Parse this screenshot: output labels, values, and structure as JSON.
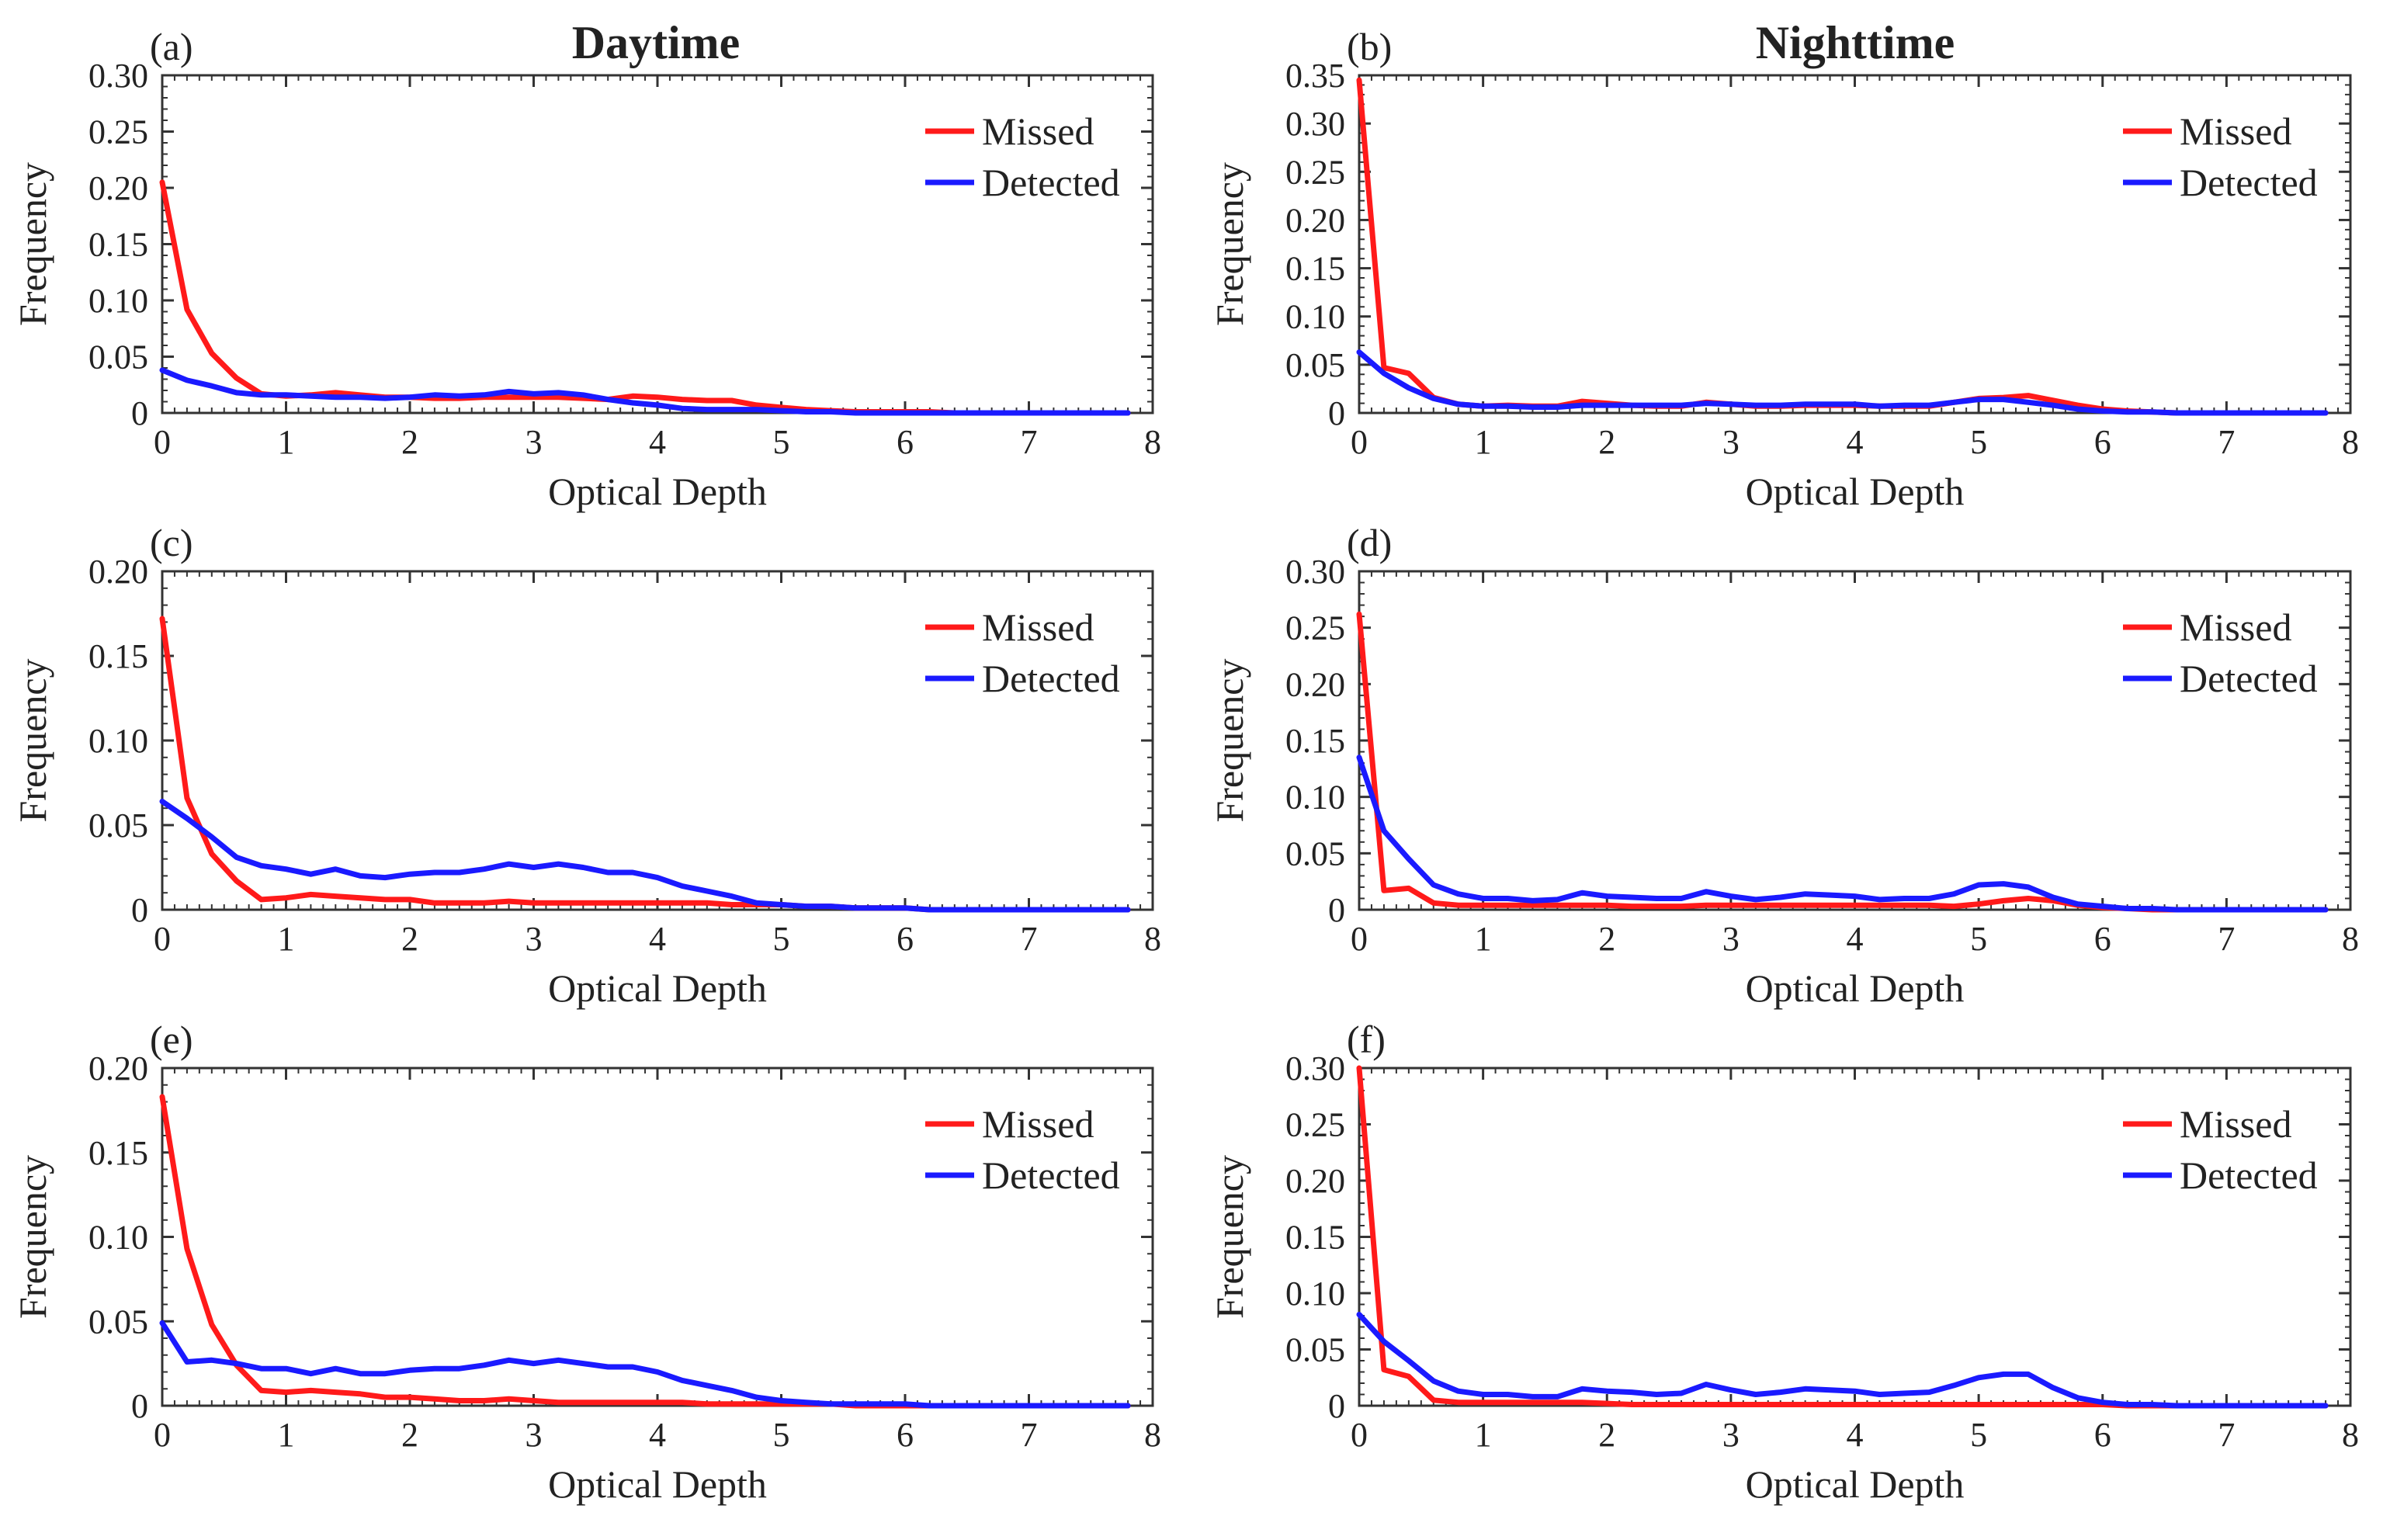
{
  "figure": {
    "column_titles": [
      "Daytime",
      "Nighttime"
    ]
  },
  "colors": {
    "missed": "#ff1a1a",
    "detected": "#1a1aff",
    "axis": "#333333"
  },
  "chart_data": [
    {
      "type": "line",
      "panel_label": "(a)",
      "xlabel": "Optical Depth",
      "ylabel": "Frequency",
      "xlim": [
        0,
        8
      ],
      "ylim": [
        0,
        0.3
      ],
      "x_ticks": [
        0,
        1,
        2,
        3,
        4,
        5,
        6,
        7,
        8
      ],
      "x_tick_labels": [
        "0",
        "1",
        "2",
        "3",
        "4",
        "5",
        "6",
        "7",
        "8"
      ],
      "y_ticks": [
        0,
        0.05,
        0.1,
        0.15,
        0.2,
        0.25,
        0.3
      ],
      "y_tick_labels": [
        "0",
        "0.05",
        "0.10",
        "0.15",
        "0.20",
        "0.25",
        "0.30"
      ],
      "legend": {
        "position": "top-right",
        "entries": [
          "Missed",
          "Detected"
        ]
      },
      "x": [
        0,
        0.2,
        0.4,
        0.6,
        0.8,
        1.0,
        1.2,
        1.4,
        1.6,
        1.8,
        2.0,
        2.2,
        2.4,
        2.6,
        2.8,
        3.0,
        3.2,
        3.4,
        3.6,
        3.8,
        4.0,
        4.2,
        4.4,
        4.6,
        4.8,
        5.0,
        5.2,
        5.4,
        5.6,
        5.8,
        6.0,
        6.2,
        6.4,
        6.6,
        6.8,
        7.0,
        7.2,
        7.4,
        7.6,
        7.8
      ],
      "series": [
        {
          "name": "Missed",
          "values": [
            0.205,
            0.092,
            0.053,
            0.031,
            0.017,
            0.015,
            0.016,
            0.018,
            0.016,
            0.014,
            0.014,
            0.013,
            0.013,
            0.014,
            0.014,
            0.014,
            0.014,
            0.013,
            0.012,
            0.015,
            0.014,
            0.012,
            0.011,
            0.011,
            0.007,
            0.005,
            0.003,
            0.002,
            0.001,
            0.001,
            0.001,
            0.001,
            0.0,
            0.0,
            0.0,
            0.0,
            0.0,
            0.0,
            0.0,
            0.0
          ]
        },
        {
          "name": "Detected",
          "values": [
            0.038,
            0.029,
            0.024,
            0.018,
            0.016,
            0.016,
            0.015,
            0.014,
            0.014,
            0.013,
            0.014,
            0.016,
            0.015,
            0.016,
            0.019,
            0.017,
            0.018,
            0.016,
            0.012,
            0.009,
            0.007,
            0.004,
            0.003,
            0.003,
            0.003,
            0.002,
            0.001,
            0.001,
            0.0,
            0.0,
            0.0,
            0.0,
            0.0,
            0.0,
            0.0,
            0.0,
            0.0,
            0.0,
            0.0,
            0.0
          ]
        }
      ]
    },
    {
      "type": "line",
      "panel_label": "(b)",
      "xlabel": "Optical Depth",
      "ylabel": "Frequency",
      "xlim": [
        0,
        8
      ],
      "ylim": [
        0,
        0.35
      ],
      "x_ticks": [
        0,
        1,
        2,
        3,
        4,
        5,
        6,
        7,
        8
      ],
      "x_tick_labels": [
        "0",
        "1",
        "2",
        "3",
        "4",
        "5",
        "6",
        "7",
        "8"
      ],
      "y_ticks": [
        0,
        0.05,
        0.1,
        0.15,
        0.2,
        0.25,
        0.3,
        0.35
      ],
      "y_tick_labels": [
        "0",
        "0.05",
        "0.10",
        "0.15",
        "0.20",
        "0.25",
        "0.30",
        "0.35"
      ],
      "legend": {
        "position": "top-right",
        "entries": [
          "Missed",
          "Detected"
        ]
      },
      "x": [
        0,
        0.2,
        0.4,
        0.6,
        0.8,
        1.0,
        1.2,
        1.4,
        1.6,
        1.8,
        2.0,
        2.2,
        2.4,
        2.6,
        2.8,
        3.0,
        3.2,
        3.4,
        3.6,
        3.8,
        4.0,
        4.2,
        4.4,
        4.6,
        4.8,
        5.0,
        5.2,
        5.4,
        5.6,
        5.8,
        6.0,
        6.2,
        6.4,
        6.6,
        6.8,
        7.0,
        7.2,
        7.4,
        7.6,
        7.8
      ],
      "series": [
        {
          "name": "Missed",
          "values": [
            0.345,
            0.047,
            0.041,
            0.016,
            0.009,
            0.007,
            0.008,
            0.007,
            0.007,
            0.012,
            0.01,
            0.008,
            0.007,
            0.007,
            0.011,
            0.009,
            0.007,
            0.007,
            0.008,
            0.008,
            0.008,
            0.007,
            0.007,
            0.007,
            0.011,
            0.015,
            0.016,
            0.018,
            0.013,
            0.008,
            0.004,
            0.002,
            0.001,
            0.0,
            0.0,
            0.0,
            0.0,
            0.0,
            0.0,
            0.0
          ]
        },
        {
          "name": "Detected",
          "values": [
            0.063,
            0.041,
            0.026,
            0.015,
            0.009,
            0.007,
            0.007,
            0.006,
            0.006,
            0.008,
            0.008,
            0.008,
            0.008,
            0.008,
            0.01,
            0.009,
            0.008,
            0.008,
            0.009,
            0.009,
            0.009,
            0.007,
            0.008,
            0.008,
            0.011,
            0.014,
            0.014,
            0.011,
            0.008,
            0.004,
            0.002,
            0.001,
            0.001,
            0.0,
            0.0,
            0.0,
            0.0,
            0.0,
            0.0,
            0.0
          ]
        }
      ]
    },
    {
      "type": "line",
      "panel_label": "(c)",
      "xlabel": "Optical Depth",
      "ylabel": "Frequency",
      "xlim": [
        0,
        8
      ],
      "ylim": [
        0,
        0.2
      ],
      "x_ticks": [
        0,
        1,
        2,
        3,
        4,
        5,
        6,
        7,
        8
      ],
      "x_tick_labels": [
        "0",
        "1",
        "2",
        "3",
        "4",
        "5",
        "6",
        "7",
        "8"
      ],
      "y_ticks": [
        0,
        0.05,
        0.1,
        0.15,
        0.2
      ],
      "y_tick_labels": [
        "0",
        "0.05",
        "0.10",
        "0.15",
        "0.20"
      ],
      "legend": {
        "position": "top-right",
        "entries": [
          "Missed",
          "Detected"
        ]
      },
      "x": [
        0,
        0.2,
        0.4,
        0.6,
        0.8,
        1.0,
        1.2,
        1.4,
        1.6,
        1.8,
        2.0,
        2.2,
        2.4,
        2.6,
        2.8,
        3.0,
        3.2,
        3.4,
        3.6,
        3.8,
        4.0,
        4.2,
        4.4,
        4.6,
        4.8,
        5.0,
        5.2,
        5.4,
        5.6,
        5.8,
        6.0,
        6.2,
        6.4,
        6.6,
        6.8,
        7.0,
        7.2,
        7.4,
        7.6,
        7.8
      ],
      "series": [
        {
          "name": "Missed",
          "values": [
            0.172,
            0.066,
            0.033,
            0.017,
            0.006,
            0.007,
            0.009,
            0.008,
            0.007,
            0.006,
            0.006,
            0.004,
            0.004,
            0.004,
            0.005,
            0.004,
            0.004,
            0.004,
            0.004,
            0.004,
            0.004,
            0.004,
            0.004,
            0.003,
            0.003,
            0.003,
            0.002,
            0.002,
            0.001,
            0.001,
            0.001,
            0.0,
            0.0,
            0.0,
            0.0,
            0.0,
            0.0,
            0.0,
            0.0,
            0.0
          ]
        },
        {
          "name": "Detected",
          "values": [
            0.064,
            0.054,
            0.043,
            0.031,
            0.026,
            0.024,
            0.021,
            0.024,
            0.02,
            0.019,
            0.021,
            0.022,
            0.022,
            0.024,
            0.027,
            0.025,
            0.027,
            0.025,
            0.022,
            0.022,
            0.019,
            0.014,
            0.011,
            0.008,
            0.004,
            0.003,
            0.002,
            0.002,
            0.001,
            0.001,
            0.001,
            0.0,
            0.0,
            0.0,
            0.0,
            0.0,
            0.0,
            0.0,
            0.0,
            0.0
          ]
        }
      ]
    },
    {
      "type": "line",
      "panel_label": "(d)",
      "xlabel": "Optical Depth",
      "ylabel": "Frequency",
      "xlim": [
        0,
        8
      ],
      "ylim": [
        0,
        0.3
      ],
      "x_ticks": [
        0,
        1,
        2,
        3,
        4,
        5,
        6,
        7,
        8
      ],
      "x_tick_labels": [
        "0",
        "1",
        "2",
        "3",
        "4",
        "5",
        "6",
        "7",
        "8"
      ],
      "y_ticks": [
        0,
        0.05,
        0.1,
        0.15,
        0.2,
        0.25,
        0.3
      ],
      "y_tick_labels": [
        "0",
        "0.05",
        "0.10",
        "0.15",
        "0.20",
        "0.25",
        "0.30"
      ],
      "legend": {
        "position": "top-right",
        "entries": [
          "Missed",
          "Detected"
        ]
      },
      "x": [
        0,
        0.2,
        0.4,
        0.6,
        0.8,
        1.0,
        1.2,
        1.4,
        1.6,
        1.8,
        2.0,
        2.2,
        2.4,
        2.6,
        2.8,
        3.0,
        3.2,
        3.4,
        3.6,
        3.8,
        4.0,
        4.2,
        4.4,
        4.6,
        4.8,
        5.0,
        5.2,
        5.4,
        5.6,
        5.8,
        6.0,
        6.2,
        6.4,
        6.6,
        6.8,
        7.0,
        7.2,
        7.4,
        7.6,
        7.8
      ],
      "series": [
        {
          "name": "Missed",
          "values": [
            0.262,
            0.017,
            0.019,
            0.006,
            0.004,
            0.004,
            0.004,
            0.004,
            0.004,
            0.004,
            0.004,
            0.003,
            0.003,
            0.003,
            0.004,
            0.004,
            0.004,
            0.004,
            0.004,
            0.004,
            0.004,
            0.004,
            0.004,
            0.004,
            0.003,
            0.005,
            0.008,
            0.01,
            0.008,
            0.004,
            0.002,
            0.001,
            0.0,
            0.0,
            0.0,
            0.0,
            0.0,
            0.0,
            0.0,
            0.0
          ]
        },
        {
          "name": "Detected",
          "values": [
            0.135,
            0.07,
            0.045,
            0.022,
            0.014,
            0.01,
            0.01,
            0.008,
            0.009,
            0.015,
            0.012,
            0.011,
            0.01,
            0.01,
            0.016,
            0.012,
            0.009,
            0.011,
            0.014,
            0.013,
            0.012,
            0.009,
            0.01,
            0.01,
            0.014,
            0.022,
            0.023,
            0.02,
            0.011,
            0.005,
            0.003,
            0.001,
            0.001,
            0.0,
            0.0,
            0.0,
            0.0,
            0.0,
            0.0,
            0.0
          ]
        }
      ]
    },
    {
      "type": "line",
      "panel_label": "(e)",
      "xlabel": "Optical Depth",
      "ylabel": "Frequency",
      "xlim": [
        0,
        8
      ],
      "ylim": [
        0,
        0.2
      ],
      "x_ticks": [
        0,
        1,
        2,
        3,
        4,
        5,
        6,
        7,
        8
      ],
      "x_tick_labels": [
        "0",
        "1",
        "2",
        "3",
        "4",
        "5",
        "6",
        "7",
        "8"
      ],
      "y_ticks": [
        0,
        0.05,
        0.1,
        0.15,
        0.2
      ],
      "y_tick_labels": [
        "0",
        "0.05",
        "0.10",
        "0.15",
        "0.20"
      ],
      "legend": {
        "position": "top-right",
        "entries": [
          "Missed",
          "Detected"
        ]
      },
      "x": [
        0,
        0.2,
        0.4,
        0.6,
        0.8,
        1.0,
        1.2,
        1.4,
        1.6,
        1.8,
        2.0,
        2.2,
        2.4,
        2.6,
        2.8,
        3.0,
        3.2,
        3.4,
        3.6,
        3.8,
        4.0,
        4.2,
        4.4,
        4.6,
        4.8,
        5.0,
        5.2,
        5.4,
        5.6,
        5.8,
        6.0,
        6.2,
        6.4,
        6.6,
        6.8,
        7.0,
        7.2,
        7.4,
        7.6,
        7.8
      ],
      "series": [
        {
          "name": "Missed",
          "values": [
            0.183,
            0.093,
            0.048,
            0.024,
            0.009,
            0.008,
            0.009,
            0.008,
            0.007,
            0.005,
            0.005,
            0.004,
            0.003,
            0.003,
            0.004,
            0.003,
            0.002,
            0.002,
            0.002,
            0.002,
            0.002,
            0.002,
            0.001,
            0.001,
            0.001,
            0.001,
            0.001,
            0.001,
            0.0,
            0.0,
            0.0,
            0.0,
            0.0,
            0.0,
            0.0,
            0.0,
            0.0,
            0.0,
            0.0,
            0.0
          ]
        },
        {
          "name": "Detected",
          "values": [
            0.049,
            0.026,
            0.027,
            0.025,
            0.022,
            0.022,
            0.019,
            0.022,
            0.019,
            0.019,
            0.021,
            0.022,
            0.022,
            0.024,
            0.027,
            0.025,
            0.027,
            0.025,
            0.023,
            0.023,
            0.02,
            0.015,
            0.012,
            0.009,
            0.005,
            0.003,
            0.002,
            0.001,
            0.001,
            0.001,
            0.001,
            0.0,
            0.0,
            0.0,
            0.0,
            0.0,
            0.0,
            0.0,
            0.0,
            0.0
          ]
        }
      ]
    },
    {
      "type": "line",
      "panel_label": "(f)",
      "xlabel": "Optical Depth",
      "ylabel": "Frequency",
      "xlim": [
        0,
        8
      ],
      "ylim": [
        0,
        0.3
      ],
      "x_ticks": [
        0,
        1,
        2,
        3,
        4,
        5,
        6,
        7,
        8
      ],
      "x_tick_labels": [
        "0",
        "1",
        "2",
        "3",
        "4",
        "5",
        "6",
        "7",
        "8"
      ],
      "y_ticks": [
        0,
        0.05,
        0.1,
        0.15,
        0.2,
        0.25,
        0.3
      ],
      "y_tick_labels": [
        "0",
        "0.05",
        "0.10",
        "0.15",
        "0.20",
        "0.25",
        "0.30"
      ],
      "legend": {
        "position": "top-right",
        "entries": [
          "Missed",
          "Detected"
        ]
      },
      "x": [
        0,
        0.2,
        0.4,
        0.6,
        0.8,
        1.0,
        1.2,
        1.4,
        1.6,
        1.8,
        2.0,
        2.2,
        2.4,
        2.6,
        2.8,
        3.0,
        3.2,
        3.4,
        3.6,
        3.8,
        4.0,
        4.2,
        4.4,
        4.6,
        4.8,
        5.0,
        5.2,
        5.4,
        5.6,
        5.8,
        6.0,
        6.2,
        6.4,
        6.6,
        6.8,
        7.0,
        7.2,
        7.4,
        7.6,
        7.8
      ],
      "series": [
        {
          "name": "Missed",
          "values": [
            0.3,
            0.032,
            0.026,
            0.005,
            0.003,
            0.003,
            0.003,
            0.003,
            0.003,
            0.003,
            0.002,
            0.001,
            0.001,
            0.001,
            0.001,
            0.001,
            0.001,
            0.001,
            0.001,
            0.001,
            0.001,
            0.001,
            0.001,
            0.001,
            0.001,
            0.001,
            0.001,
            0.001,
            0.001,
            0.001,
            0.001,
            0.0,
            0.0,
            0.0,
            0.0,
            0.0,
            0.0,
            0.0,
            0.0,
            0.0
          ]
        },
        {
          "name": "Detected",
          "values": [
            0.081,
            0.057,
            0.04,
            0.022,
            0.013,
            0.01,
            0.01,
            0.008,
            0.008,
            0.015,
            0.013,
            0.012,
            0.01,
            0.011,
            0.019,
            0.014,
            0.01,
            0.012,
            0.015,
            0.014,
            0.013,
            0.01,
            0.011,
            0.012,
            0.018,
            0.025,
            0.028,
            0.028,
            0.016,
            0.007,
            0.003,
            0.001,
            0.001,
            0.0,
            0.0,
            0.0,
            0.0,
            0.0,
            0.0,
            0.0
          ]
        }
      ]
    }
  ]
}
